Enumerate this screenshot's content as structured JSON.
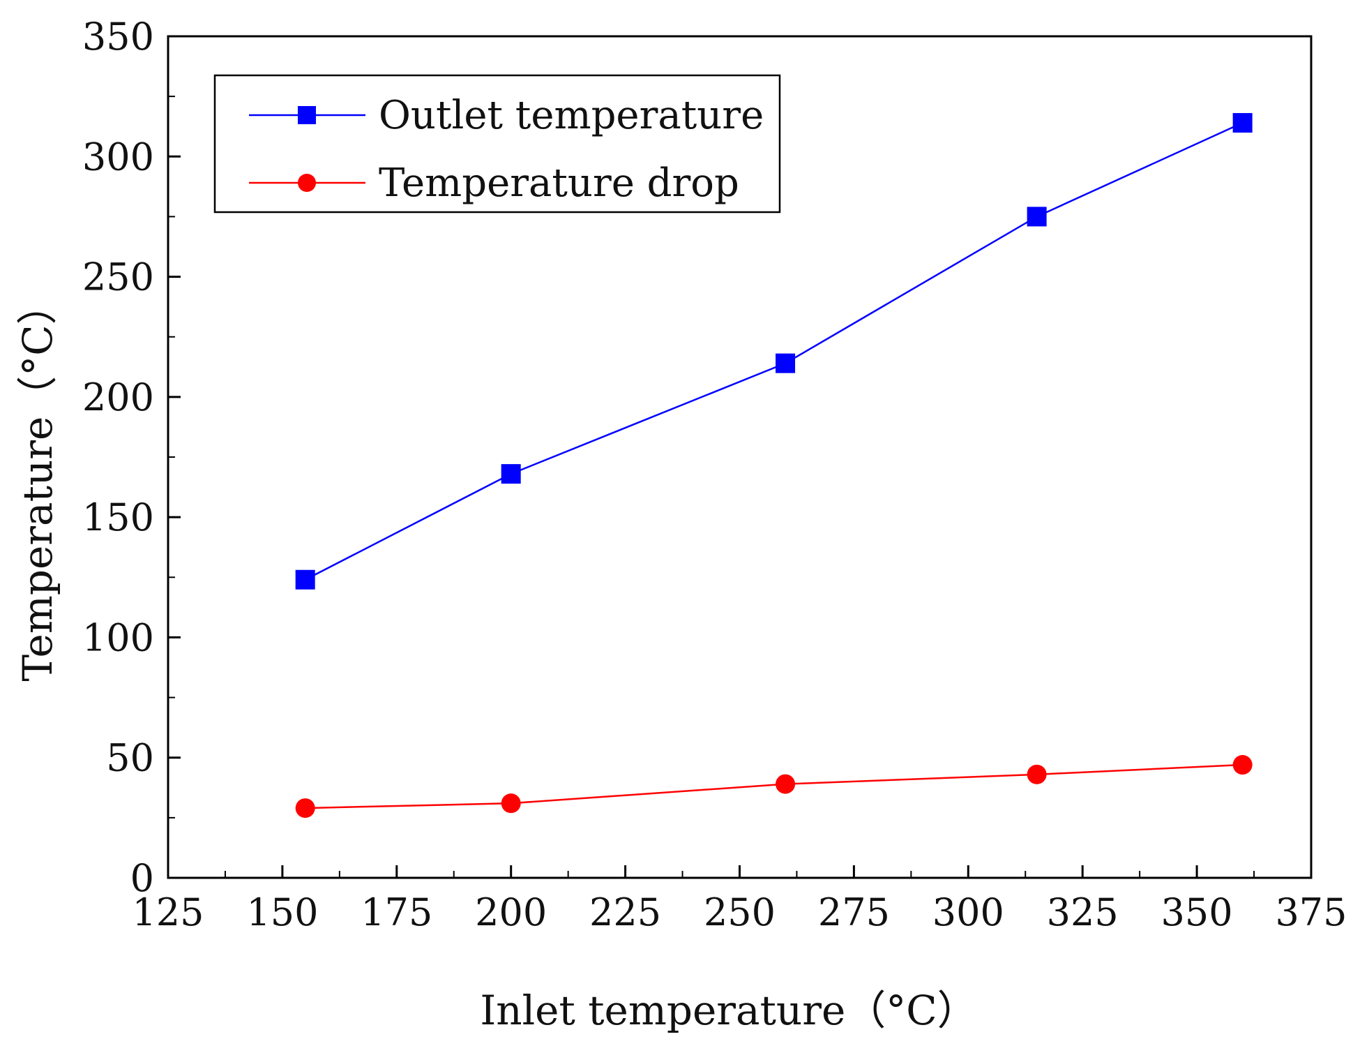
{
  "chart_data": {
    "type": "line",
    "title": "",
    "xlabel": "Inlet temperature（°C）",
    "ylabel": "Temperature（°C）",
    "xlim": [
      125,
      375
    ],
    "ylim": [
      0,
      350
    ],
    "xticks": [
      125,
      150,
      175,
      200,
      225,
      250,
      275,
      300,
      325,
      350,
      375
    ],
    "yticks": [
      0,
      50,
      100,
      150,
      200,
      250,
      300,
      350
    ],
    "x_tick_labels": [
      "125",
      "150",
      "175",
      "200",
      "225",
      "250",
      "275",
      "300",
      "325",
      "350",
      "375"
    ],
    "y_tick_labels": [
      "0",
      "50",
      "100",
      "150",
      "200",
      "250",
      "300",
      "350"
    ],
    "legend_position": "top-left",
    "grid": false,
    "series": [
      {
        "name": "Outlet temperature",
        "color": "#0000ff",
        "marker": "square",
        "x": [
          155,
          200,
          260,
          315,
          360
        ],
        "values": [
          124,
          168,
          214,
          275,
          314
        ]
      },
      {
        "name": "Temperature drop",
        "color": "#ff0000",
        "marker": "circle",
        "x": [
          155,
          200,
          260,
          315,
          360
        ],
        "values": [
          29,
          31,
          39,
          43,
          47
        ]
      }
    ]
  }
}
